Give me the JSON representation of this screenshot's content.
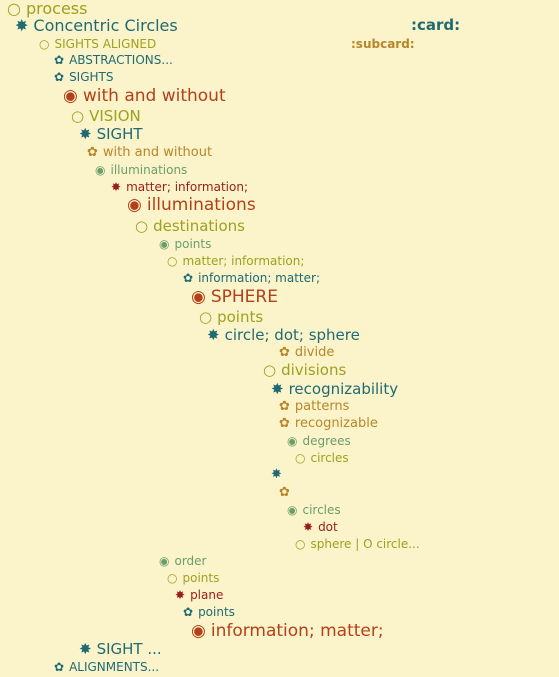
{
  "colors": {
    "background": "#fbf3c9",
    "olive": "#a0a020",
    "teal": "#1f6b75",
    "rust": "#b4401a",
    "green": "#6b9e6b",
    "darkred": "#9b1c1c",
    "gold": "#b8862a",
    "tealdark": "#176b6b"
  },
  "tags": {
    "card": ":card:",
    "subcard": ":subcard:"
  },
  "nodes": [
    {
      "bullet": "○",
      "text": "process",
      "color": "#a0a020",
      "bullet_name": "circle-outline-bullet-icon"
    },
    {
      "bullet": "✸",
      "text": "Concentric Circles",
      "color": "#1f6b75",
      "bullet_name": "star-bullet-icon"
    },
    {
      "bullet": "○",
      "text": "SIGHTS ALIGNED",
      "color": "#a0a020",
      "bullet_name": "circle-outline-bullet-icon"
    },
    {
      "bullet": "✿",
      "text": "ABSTRACTIONS...",
      "color": "#1f6b75",
      "bullet_name": "flower-bullet-icon"
    },
    {
      "bullet": "✿",
      "text": "SIGHTS",
      "color": "#1f6b75",
      "bullet_name": "flower-bullet-icon"
    },
    {
      "bullet": "◉",
      "text": "with and without",
      "color": "#b4401a",
      "bullet_name": "circle-dot-bullet-icon"
    },
    {
      "bullet": "○",
      "text": "VISION",
      "color": "#a0a020",
      "bullet_name": "circle-outline-bullet-icon"
    },
    {
      "bullet": "✸",
      "text": "SIGHT",
      "color": "#1f6b75",
      "bullet_name": "star-bullet-icon"
    },
    {
      "bullet": "✿",
      "text": "with and without",
      "color": "#b8862a",
      "bullet_name": "flower-bullet-icon"
    },
    {
      "bullet": "◉",
      "text": "illuminations",
      "color": "#6b9e6b",
      "bullet_name": "circle-dot-bullet-icon"
    },
    {
      "bullet": "✸",
      "text": "matter; information;",
      "color": "#9b1c1c",
      "bullet_name": "star-bullet-icon"
    },
    {
      "bullet": "◉",
      "text": "illuminations",
      "color": "#b4401a",
      "bullet_name": "circle-dot-bullet-icon"
    },
    {
      "bullet": "○",
      "text": "destinations",
      "color": "#a0a020",
      "bullet_name": "circle-outline-bullet-icon"
    },
    {
      "bullet": "◉",
      "text": "points",
      "color": "#6b9e6b",
      "bullet_name": "circle-dot-bullet-icon"
    },
    {
      "bullet": "○",
      "text": "matter; information;",
      "color": "#a0a020",
      "bullet_name": "circle-outline-bullet-icon"
    },
    {
      "bullet": "✿",
      "text": "information; matter;",
      "color": "#1f6b75",
      "bullet_name": "flower-bullet-icon"
    },
    {
      "bullet": "◉",
      "text": "SPHERE",
      "color": "#b4401a",
      "bullet_name": "circle-dot-bullet-icon"
    },
    {
      "bullet": "○",
      "text": "points",
      "color": "#a0a020",
      "bullet_name": "circle-outline-bullet-icon"
    },
    {
      "bullet": "✸",
      "text": "circle; dot; sphere",
      "color": "#1f6b75",
      "bullet_name": "star-bullet-icon"
    },
    {
      "bullet": "✿",
      "text": "divide",
      "color": "#b8862a",
      "bullet_name": "flower-bullet-icon"
    },
    {
      "bullet": "○",
      "text": "divisions",
      "color": "#a0a020",
      "bullet_name": "circle-outline-bullet-icon"
    },
    {
      "bullet": "✸",
      "text": "recognizability",
      "color": "#1f6b75",
      "bullet_name": "star-bullet-icon"
    },
    {
      "bullet": "✿",
      "text": "patterns",
      "color": "#b8862a",
      "bullet_name": "flower-bullet-icon"
    },
    {
      "bullet": "✿",
      "text": "recognizable",
      "color": "#b8862a",
      "bullet_name": "flower-bullet-icon"
    },
    {
      "bullet": "◉",
      "text": "degrees",
      "color": "#6b9e6b",
      "bullet_name": "circle-dot-bullet-icon"
    },
    {
      "bullet": "○",
      "text": "circles",
      "color": "#a0a020",
      "bullet_name": "circle-outline-bullet-icon"
    },
    {
      "bullet": "✸",
      "text": "",
      "color": "#1f6b75",
      "bullet_name": "star-bullet-icon"
    },
    {
      "bullet": "✿",
      "text": "",
      "color": "#b8862a",
      "bullet_name": "flower-bullet-icon"
    },
    {
      "bullet": "◉",
      "text": "circles",
      "color": "#6b9e6b",
      "bullet_name": "circle-dot-bullet-icon"
    },
    {
      "bullet": "✸",
      "text": "dot",
      "color": "#9b1c1c",
      "bullet_name": "star-bullet-icon"
    },
    {
      "bullet": "○",
      "text": "sphere | O circle...",
      "color": "#a0a020",
      "bullet_name": "circle-outline-bullet-icon"
    },
    {
      "bullet": "◉",
      "text": "order",
      "color": "#6b9e6b",
      "bullet_name": "circle-dot-bullet-icon"
    },
    {
      "bullet": "○",
      "text": "points",
      "color": "#a0a020",
      "bullet_name": "circle-outline-bullet-icon"
    },
    {
      "bullet": "✸",
      "text": "plane",
      "color": "#9b1c1c",
      "bullet_name": "star-bullet-icon"
    },
    {
      "bullet": "✿",
      "text": "points",
      "color": "#1f6b75",
      "bullet_name": "flower-bullet-icon"
    },
    {
      "bullet": "◉",
      "text": "information; matter;",
      "color": "#b4401a",
      "bullet_name": "circle-dot-bullet-icon"
    },
    {
      "bullet": "✸",
      "text": "SIGHT ...",
      "color": "#1f6b75",
      "bullet_name": "star-bullet-icon"
    },
    {
      "bullet": "✿",
      "text": "ALIGNMENTS...",
      "color": "#1f6b75",
      "bullet_name": "flower-bullet-icon"
    }
  ]
}
